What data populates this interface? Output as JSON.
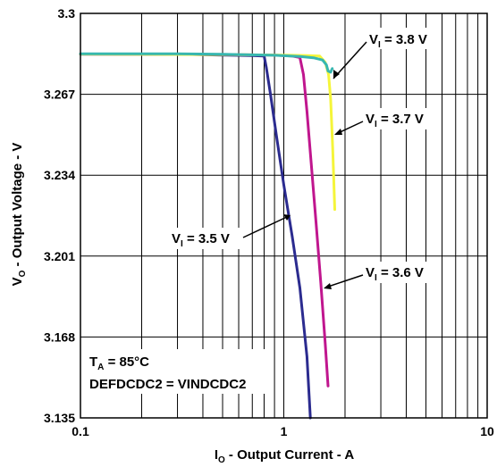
{
  "chart_data": {
    "type": "line",
    "title": "",
    "xlabel": {
      "main": "I",
      "sub": "O",
      "rest": " - Output Current - A"
    },
    "ylabel": {
      "main": "V",
      "sub": "O",
      "rest": " - Output Voltage - V"
    },
    "xscale": "log",
    "xlim": [
      0.1,
      10
    ],
    "ylim": [
      3.135,
      3.3
    ],
    "x_ticks": [
      {
        "value": 0.1,
        "label": "0.1"
      },
      {
        "value": 1,
        "label": "1"
      },
      {
        "value": 10,
        "label": "10"
      }
    ],
    "y_ticks": [
      {
        "value": 3.135,
        "label": "3.135"
      },
      {
        "value": 3.168,
        "label": "3.168"
      },
      {
        "value": 3.201,
        "label": "3.201"
      },
      {
        "value": 3.234,
        "label": "3.234"
      },
      {
        "value": 3.267,
        "label": "3.267"
      },
      {
        "value": 3.3,
        "label": "3.3"
      }
    ],
    "grid": true,
    "series": [
      {
        "name": "VI = 3.5 V",
        "color": "#2b2b8f",
        "points": [
          [
            0.1,
            3.2834
          ],
          [
            0.3,
            3.2834
          ],
          [
            0.5,
            3.283
          ],
          [
            0.7,
            3.2828
          ],
          [
            0.8,
            3.2826
          ],
          [
            0.82,
            3.278
          ],
          [
            0.86,
            3.267
          ],
          [
            0.92,
            3.25
          ],
          [
            1.0,
            3.23
          ],
          [
            1.1,
            3.209
          ],
          [
            1.2,
            3.188
          ],
          [
            1.3,
            3.16
          ],
          [
            1.35,
            3.135
          ]
        ]
      },
      {
        "name": "VI = 3.6 V",
        "color": "#c0168e",
        "points": [
          [
            0.1,
            3.2834
          ],
          [
            0.5,
            3.2832
          ],
          [
            0.9,
            3.283
          ],
          [
            1.1,
            3.2826
          ],
          [
            1.2,
            3.282
          ],
          [
            1.25,
            3.275
          ],
          [
            1.3,
            3.26
          ],
          [
            1.36,
            3.24
          ],
          [
            1.44,
            3.215
          ],
          [
            1.52,
            3.19
          ],
          [
            1.6,
            3.165
          ],
          [
            1.65,
            3.148
          ]
        ]
      },
      {
        "name": "VI = 3.7 V",
        "color": "#f5f53a",
        "points": [
          [
            0.1,
            3.2834
          ],
          [
            0.5,
            3.2832
          ],
          [
            1.0,
            3.283
          ],
          [
            1.3,
            3.2828
          ],
          [
            1.5,
            3.2826
          ],
          [
            1.6,
            3.28
          ],
          [
            1.66,
            3.275
          ],
          [
            1.7,
            3.265
          ],
          [
            1.74,
            3.245
          ],
          [
            1.78,
            3.22
          ]
        ]
      },
      {
        "name": "VI = 3.8 V",
        "color": "#37b7b0",
        "points": [
          [
            0.1,
            3.2835
          ],
          [
            0.3,
            3.2835
          ],
          [
            0.5,
            3.2833
          ],
          [
            0.9,
            3.2829
          ],
          [
            1.2,
            3.2824
          ],
          [
            1.4,
            3.2819
          ],
          [
            1.55,
            3.281
          ],
          [
            1.62,
            3.279
          ],
          [
            1.65,
            3.2765
          ],
          [
            1.7,
            3.276
          ],
          [
            1.73,
            3.2775
          ]
        ]
      }
    ],
    "annotations": [
      {
        "id": "vi38",
        "main": "V",
        "sub": "I",
        "rest": " = 3.8 V"
      },
      {
        "id": "vi37",
        "main": "V",
        "sub": "I",
        "rest": " = 3.7 V"
      },
      {
        "id": "vi35",
        "main": "V",
        "sub": "I",
        "rest": " = 3.5 V"
      },
      {
        "id": "vi36",
        "main": "V",
        "sub": "I",
        "rest": " = 3.6 V"
      }
    ],
    "conditions": {
      "line1": {
        "main": "T",
        "sub": "A",
        "rest": " = 85°C"
      },
      "line2": "DEFDCDC2 = VINDCDC2"
    }
  }
}
